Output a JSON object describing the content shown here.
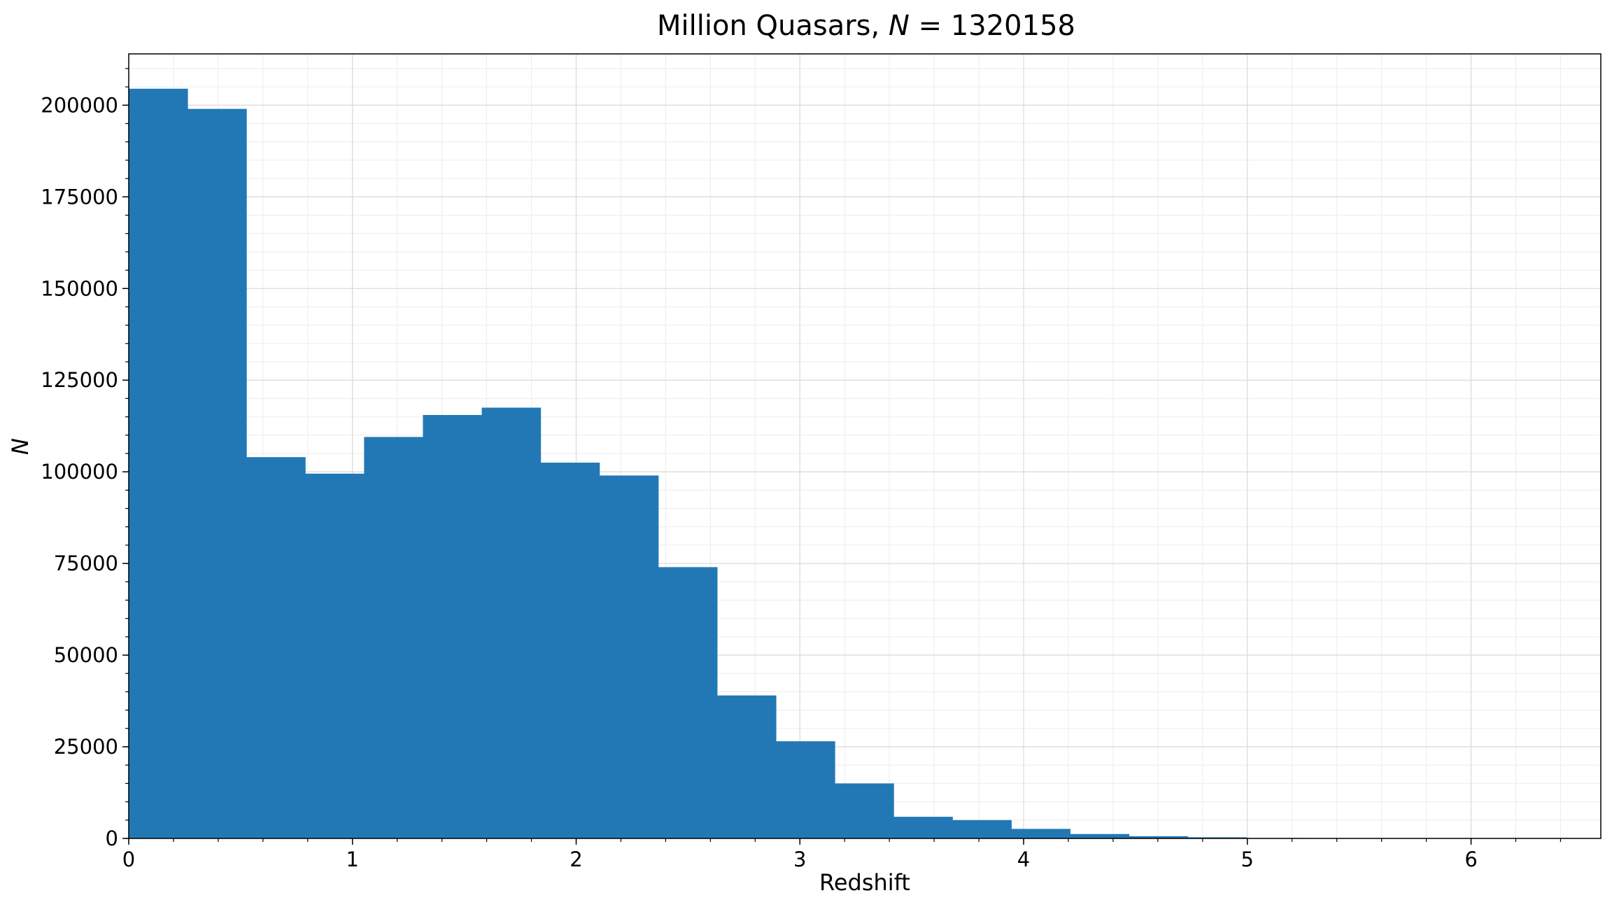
{
  "chart_data": {
    "type": "bar",
    "title": {
      "prefix": "Million Quasars, ",
      "symbol": "N",
      "suffix": " = 1320158"
    },
    "xlabel": "Redshift",
    "ylabel": "N",
    "xlim": [
      0,
      6.58
    ],
    "ylim": [
      0,
      214000
    ],
    "xticks": [
      0,
      1,
      2,
      3,
      4,
      5,
      6
    ],
    "xtick_labels": [
      "0",
      "1",
      "2",
      "3",
      "4",
      "5",
      "6"
    ],
    "yticks": [
      0,
      25000,
      50000,
      75000,
      100000,
      125000,
      150000,
      175000,
      200000
    ],
    "ytick_labels": [
      "0",
      "25000",
      "50000",
      "75000",
      "100000",
      "125000",
      "150000",
      "175000",
      "200000"
    ],
    "grid": true,
    "minor_grid": true,
    "color": "#2278b5",
    "bin_edges": [
      0,
      0.263,
      0.526,
      0.789,
      1.052,
      1.315,
      1.578,
      1.841,
      2.104,
      2.367,
      2.63,
      2.893,
      3.156,
      3.419,
      3.682,
      3.945,
      4.208,
      4.471,
      4.734,
      4.997,
      5.26,
      5.523,
      5.786,
      6.049,
      6.312
    ],
    "values": [
      204500,
      199000,
      104000,
      99500,
      109500,
      115500,
      117500,
      102500,
      99000,
      74000,
      39000,
      26500,
      15000,
      5900,
      5000,
      2600,
      1200,
      600,
      300,
      100,
      50,
      20,
      10,
      5
    ]
  }
}
